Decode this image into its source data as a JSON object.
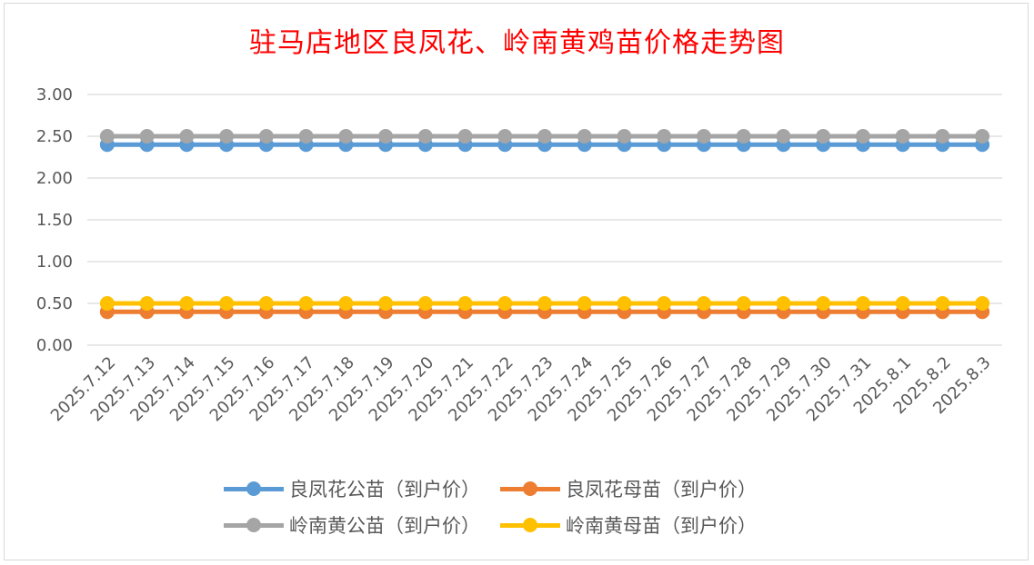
{
  "chart_data": {
    "type": "line",
    "title": "驻马店地区良凤花、岭南黄鸡苗价格走势图",
    "categories": [
      "2025.7.12",
      "2025.7.13",
      "2025.7.14",
      "2025.7.15",
      "2025.7.16",
      "2025.7.17",
      "2025.7.18",
      "2025.7.19",
      "2025.7.20",
      "2025.7.21",
      "2025.7.22",
      "2025.7.23",
      "2025.7.24",
      "2025.7.25",
      "2025.7.26",
      "2025.7.27",
      "2025.7.28",
      "2025.7.29",
      "2025.7.30",
      "2025.7.31",
      "2025.8.1",
      "2025.8.2",
      "2025.8.3"
    ],
    "ylim": [
      0,
      3
    ],
    "yticks": [
      "0.00",
      "0.50",
      "1.00",
      "1.50",
      "2.00",
      "2.50",
      "3.00"
    ],
    "ytick_values": [
      0,
      0.5,
      1,
      1.5,
      2,
      2.5,
      3
    ],
    "grid": true,
    "legend_placement": "bottom",
    "series": [
      {
        "name": "良凤花公苗（到户价）",
        "color": "#5b9bd5",
        "values": [
          2.4,
          2.4,
          2.4,
          2.4,
          2.4,
          2.4,
          2.4,
          2.4,
          2.4,
          2.4,
          2.4,
          2.4,
          2.4,
          2.4,
          2.4,
          2.4,
          2.4,
          2.4,
          2.4,
          2.4,
          2.4,
          2.4,
          2.4
        ]
      },
      {
        "name": "良凤花母苗（到户价）",
        "color": "#ed7d31",
        "values": [
          0.4,
          0.4,
          0.4,
          0.4,
          0.4,
          0.4,
          0.4,
          0.4,
          0.4,
          0.4,
          0.4,
          0.4,
          0.4,
          0.4,
          0.4,
          0.4,
          0.4,
          0.4,
          0.4,
          0.4,
          0.4,
          0.4,
          0.4
        ]
      },
      {
        "name": "岭南黄公苗（到户价）",
        "color": "#a5a5a5",
        "values": [
          2.5,
          2.5,
          2.5,
          2.5,
          2.5,
          2.5,
          2.5,
          2.5,
          2.5,
          2.5,
          2.5,
          2.5,
          2.5,
          2.5,
          2.5,
          2.5,
          2.5,
          2.5,
          2.5,
          2.5,
          2.5,
          2.5,
          2.5
        ]
      },
      {
        "name": "岭南黄母苗（到户价）",
        "color": "#ffc000",
        "values": [
          0.5,
          0.5,
          0.5,
          0.5,
          0.5,
          0.5,
          0.5,
          0.5,
          0.5,
          0.5,
          0.5,
          0.5,
          0.5,
          0.5,
          0.5,
          0.5,
          0.5,
          0.5,
          0.5,
          0.5,
          0.5,
          0.5,
          0.5
        ]
      }
    ]
  }
}
